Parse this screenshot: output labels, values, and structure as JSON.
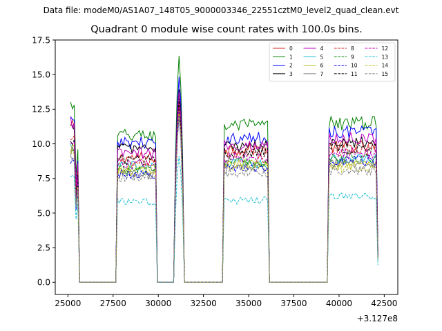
{
  "chart_data": {
    "type": "line",
    "suptitle": "Data file: modeM0/AS1A07_148T05_9000003346_22551cztM0_level2_quad_clean.evt",
    "title": "Quadrant 0 module wise count rates with 100.0s bins.",
    "xlabel": "",
    "ylabel": "",
    "x_offset_label": "+3.127e8",
    "xlim": [
      24300,
      43250
    ],
    "ylim": [
      -0.88,
      17.5
    ],
    "xticks": [
      25000,
      27500,
      30000,
      32500,
      35000,
      37500,
      40000,
      42500
    ],
    "xtick_labels": [
      "25000",
      "27500",
      "30000",
      "32500",
      "35000",
      "37500",
      "40000",
      "42500"
    ],
    "yticks": [
      0,
      2.5,
      5,
      7.5,
      10,
      12.5,
      15,
      17.5
    ],
    "ytick_labels": [
      "0.0",
      "2.5",
      "5.0",
      "7.5",
      "10.0",
      "12.5",
      "15.0",
      "17.5"
    ],
    "grid": false,
    "legend_position": "top-right",
    "legend_columns": 4,
    "segments": [
      {
        "x_start": 25150,
        "x_end": 25550,
        "drop_to": 25650
      },
      {
        "x_start": 27750,
        "x_end": 29850,
        "rise_from": 27650,
        "drop_to": 29950
      },
      {
        "x_start": 30950,
        "x_end": 31350,
        "rise_from": 30850,
        "drop_to": 31450
      },
      {
        "x_start": 33650,
        "x_end": 36050,
        "rise_from": 33550,
        "drop_to": 36150
      },
      {
        "x_start": 39450,
        "x_end": 42150,
        "rise_from": 39350
      }
    ],
    "series": [
      {
        "name": "0",
        "color": "#d62728",
        "style": "solid",
        "levels": [
          11.2,
          9.0,
          13.0,
          9.6,
          9.8
        ]
      },
      {
        "name": "1",
        "color": "#008000",
        "style": "solid",
        "levels": [
          12.8,
          10.6,
          16.5,
          11.3,
          11.5
        ]
      },
      {
        "name": "2",
        "color": "#0000ff",
        "style": "solid",
        "levels": [
          11.7,
          10.1,
          14.8,
          10.4,
          10.9
        ]
      },
      {
        "name": "3",
        "color": "#000000",
        "style": "solid",
        "levels": [
          11.0,
          9.7,
          14.1,
          9.8,
          10.2
        ]
      },
      {
        "name": "4",
        "color": "#bf00bf",
        "style": "solid",
        "levels": [
          11.5,
          9.3,
          13.7,
          9.9,
          10.4
        ]
      },
      {
        "name": "5",
        "color": "#17becf",
        "style": "solid",
        "levels": [
          9.6,
          8.4,
          12.5,
          8.6,
          8.9
        ]
      },
      {
        "name": "6",
        "color": "#bcbd22",
        "style": "solid",
        "levels": [
          9.8,
          8.0,
          12.6,
          8.5,
          8.4
        ]
      },
      {
        "name": "7",
        "color": "#7f7f7f",
        "style": "solid",
        "levels": [
          9.4,
          7.8,
          12.0,
          8.2,
          8.6
        ]
      },
      {
        "name": "8",
        "color": "#d62728",
        "style": "dashed",
        "levels": [
          10.6,
          8.6,
          12.8,
          9.3,
          9.5
        ]
      },
      {
        "name": "9",
        "color": "#008000",
        "style": "dashed",
        "levels": [
          9.5,
          8.1,
          12.2,
          8.7,
          9.0
        ]
      },
      {
        "name": "10",
        "color": "#0000ff",
        "style": "dashed",
        "levels": [
          8.7,
          7.8,
          12.0,
          8.3,
          8.8
        ]
      },
      {
        "name": "11",
        "color": "#000000",
        "style": "dashed",
        "levels": [
          10.3,
          8.8,
          13.1,
          9.4,
          9.7
        ]
      },
      {
        "name": "12",
        "color": "#bf00bf",
        "style": "dashed",
        "levels": [
          10.1,
          8.5,
          12.7,
          9.0,
          9.3
        ]
      },
      {
        "name": "13",
        "color": "#17becf",
        "style": "dashed",
        "levels": [
          7.6,
          5.8,
          9.0,
          5.9,
          6.2
        ]
      },
      {
        "name": "14",
        "color": "#bcbd22",
        "style": "dashed",
        "levels": [
          9.2,
          8.2,
          12.3,
          8.4,
          8.3
        ]
      },
      {
        "name": "15",
        "color": "#7f7f7f",
        "style": "dashed",
        "levels": [
          9.0,
          7.6,
          11.9,
          7.9,
          8.1
        ]
      }
    ]
  }
}
